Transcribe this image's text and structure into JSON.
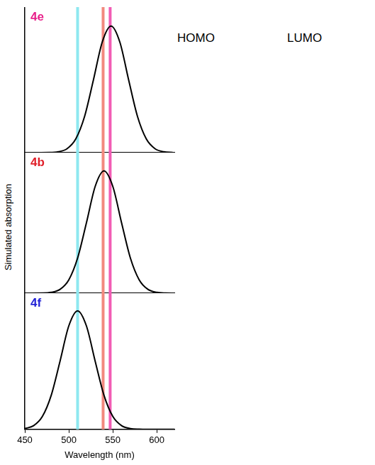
{
  "chart_data": [
    {
      "type": "line",
      "title": "4e",
      "grid": false,
      "tick_labels": false,
      "xlim": [
        450,
        620
      ],
      "ylim": [
        0,
        1
      ],
      "series": [
        {
          "name": "4e",
          "color": "#000000",
          "x": [
            450,
            478,
            488,
            498,
            508,
            518,
            528,
            538,
            548,
            558,
            568,
            578,
            588,
            598,
            608,
            618
          ],
          "values": [
            0,
            0.001,
            0.006,
            0.027,
            0.095,
            0.25,
            0.5,
            0.76,
            0.87,
            0.76,
            0.5,
            0.25,
            0.095,
            0.027,
            0.006,
            0.001
          ]
        }
      ]
    },
    {
      "type": "line",
      "title": "4b",
      "grid": false,
      "tick_labels": false,
      "xlim": [
        450,
        620
      ],
      "ylim": [
        0,
        1
      ],
      "series": [
        {
          "name": "4b",
          "color": "#000000",
          "x": [
            450,
            470,
            480,
            490,
            500,
            510,
            520,
            530,
            540,
            550,
            560,
            570,
            580,
            590,
            600,
            610,
            620
          ],
          "values": [
            0,
            0.001,
            0.006,
            0.027,
            0.095,
            0.25,
            0.5,
            0.76,
            0.87,
            0.76,
            0.5,
            0.25,
            0.095,
            0.027,
            0.006,
            0.001,
            0
          ]
        }
      ]
    },
    {
      "type": "line",
      "title": "4f",
      "grid": false,
      "tick_labels": "x",
      "x_label": "Wavelength (nm)",
      "xlim": [
        450,
        620
      ],
      "xticks": [
        450,
        500,
        550,
        600
      ],
      "ylim": [
        0,
        1
      ],
      "series": [
        {
          "name": "4f",
          "color": "#000000",
          "x": [
            450,
            460,
            470,
            480,
            490,
            500,
            510,
            520,
            530,
            540,
            550,
            560,
            570,
            580,
            590,
            600,
            620
          ],
          "values": [
            0.006,
            0.027,
            0.095,
            0.25,
            0.5,
            0.76,
            0.87,
            0.76,
            0.5,
            0.25,
            0.095,
            0.027,
            0.006,
            0.001,
            0,
            0,
            0
          ]
        }
      ]
    }
  ],
  "figure": {
    "y_label": "Simulated absorption",
    "headers": [
      "HOMO",
      "LUMO"
    ],
    "vlines": [
      {
        "x": 510,
        "color": "#8ee8f0"
      },
      {
        "x": 539,
        "color": "#f2897e"
      },
      {
        "x": 547,
        "color": "#f25cb4"
      }
    ]
  }
}
